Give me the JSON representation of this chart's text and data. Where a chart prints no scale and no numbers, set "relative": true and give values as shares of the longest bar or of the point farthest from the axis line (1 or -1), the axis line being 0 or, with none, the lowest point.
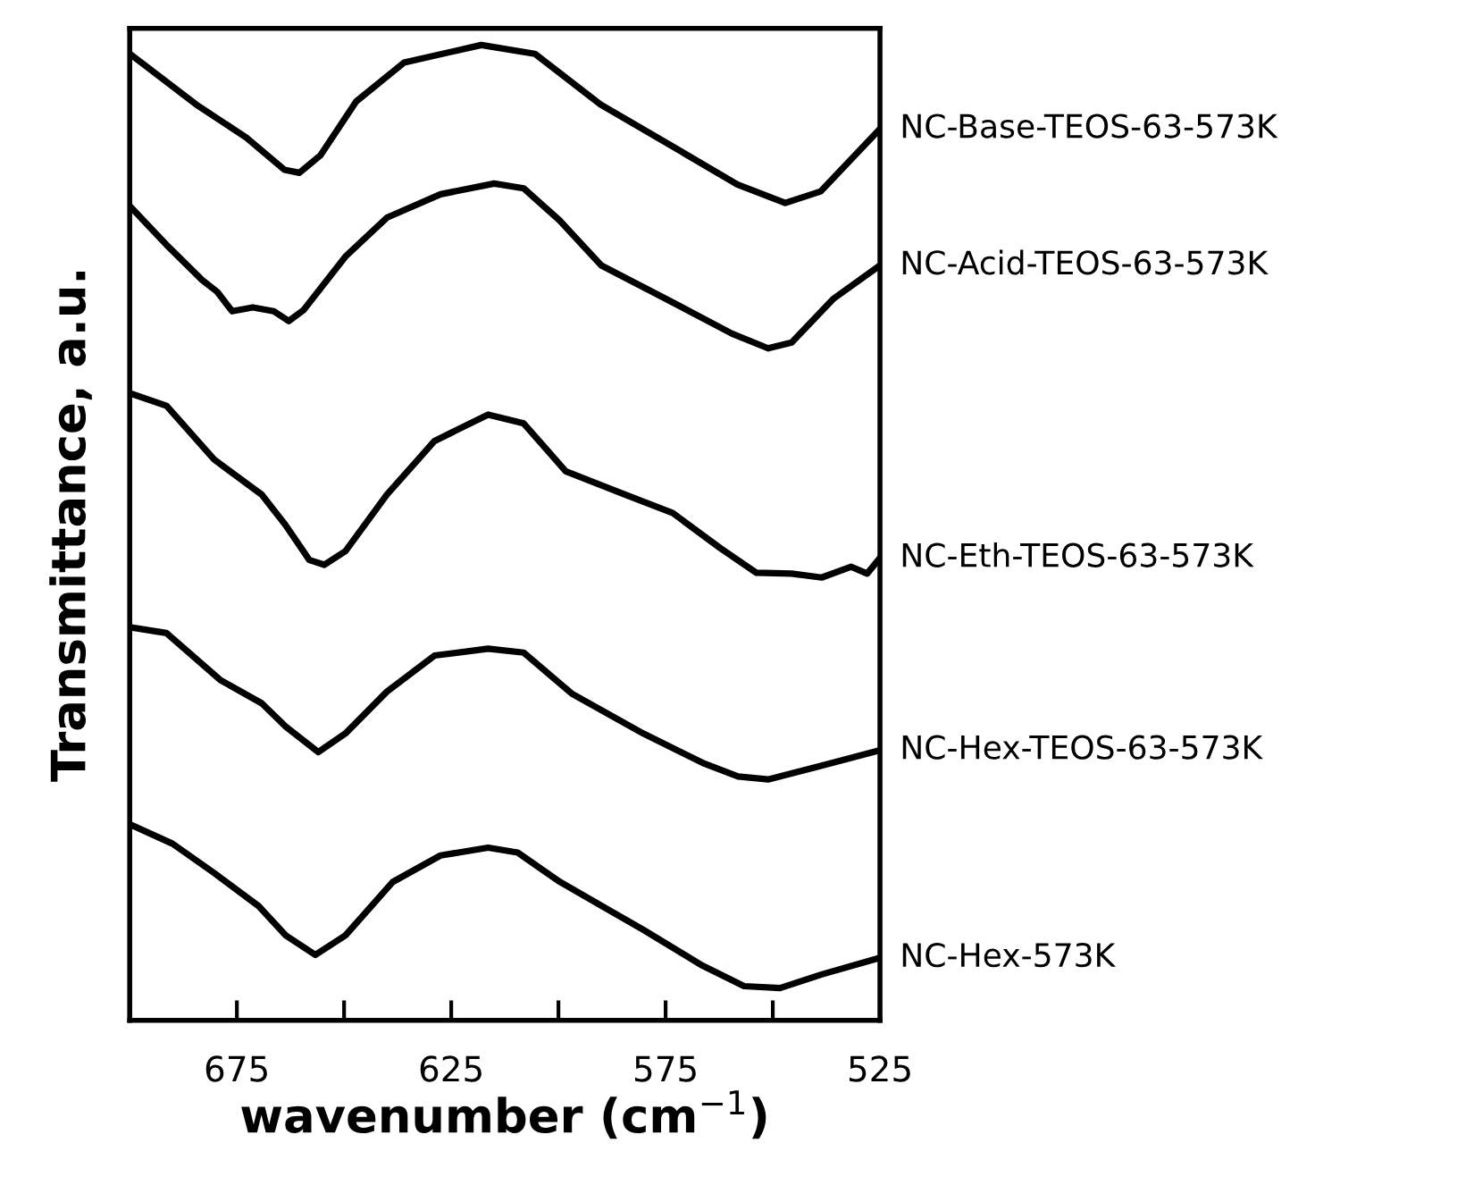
{
  "chart_data": {
    "type": "line",
    "relative": true,
    "xlabel": "wavenumber (cm$^{−1}$)",
    "ylabel": "Transmittance, a.u.",
    "xlim": [
      700,
      525
    ],
    "xticks": [
      675,
      {
        "value": 650,
        "label": null
      },
      625,
      {
        "value": 600,
        "label": null
      },
      575,
      {
        "value": 550,
        "label": null
      },
      525
    ],
    "grid": false,
    "legend": false,
    "tick_labels": "x",
    "marker": "none",
    "line_style": "solid",
    "series": [
      {
        "name": "NC-Base-TEOS-63-573K",
        "color": "#000000",
        "x": [
          700,
          684.5,
          672.8,
          663.9,
          660.4,
          655.5,
          647.2,
          636.0,
          618.0,
          605.5,
          590.2,
          572.2,
          558.3,
          547.1,
          538.8,
          525
        ],
        "values": [
          0.991,
          0.939,
          0.905,
          0.872,
          0.869,
          0.887,
          0.942,
          0.982,
          1.0,
          0.991,
          0.939,
          0.893,
          0.857,
          0.838,
          0.85,
          0.914
        ]
      },
      {
        "name": "NC-Acid-TEOS-63-573K",
        "color": "#000000",
        "x": [
          700,
          691.4,
          683.1,
          679.6,
          676.1,
          671.3,
          666.4,
          662.9,
          659.5,
          649.7,
          640.0,
          627.5,
          615.0,
          608.1,
          599.7,
          590.0,
          573.3,
          559.5,
          551.1,
          545.6,
          535.8,
          525
        ],
        "values": [
          0.835,
          0.795,
          0.759,
          0.747,
          0.727,
          0.731,
          0.727,
          0.717,
          0.728,
          0.783,
          0.823,
          0.847,
          0.858,
          0.853,
          0.82,
          0.774,
          0.736,
          0.704,
          0.689,
          0.695,
          0.74,
          0.774
        ]
      },
      {
        "name": "NC-Eth-TEOS-63-573K",
        "color": "#000000",
        "x": [
          700,
          691.4,
          680.3,
          669.2,
          663.7,
          658.1,
          654.6,
          649.7,
          640.0,
          628.9,
          616.4,
          608.1,
          598.3,
          584.5,
          573.3,
          562.2,
          553.9,
          545.6,
          538.6,
          531.7,
          528,
          525
        ],
        "values": [
          0.643,
          0.63,
          0.575,
          0.539,
          0.508,
          0.472,
          0.467,
          0.481,
          0.539,
          0.594,
          0.621,
          0.612,
          0.563,
          0.539,
          0.52,
          0.484,
          0.459,
          0.458,
          0.454,
          0.465,
          0.458,
          0.474
        ]
      },
      {
        "name": "NC-Hex-TEOS-63-573K",
        "color": "#000000",
        "x": [
          700,
          691.4,
          678.9,
          669.2,
          663.6,
          656.0,
          649.7,
          640.0,
          628.9,
          616.4,
          608.1,
          596.9,
          580.2,
          566.4,
          558.1,
          551.1,
          538.6,
          525
        ],
        "values": [
          0.403,
          0.397,
          0.349,
          0.325,
          0.301,
          0.275,
          0.294,
          0.337,
          0.374,
          0.381,
          0.377,
          0.335,
          0.294,
          0.264,
          0.25,
          0.247,
          0.261,
          0.277
        ]
      },
      {
        "name": "NC-Hex-573K",
        "color": "#000000",
        "x": [
          700,
          690,
          680.3,
          669.9,
          663.6,
          656.7,
          649.7,
          638.6,
          627.5,
          616.4,
          609.5,
          599.7,
          580.3,
          566.4,
          556.7,
          548.3,
          538.6,
          525
        ],
        "values": [
          0.201,
          0.181,
          0.151,
          0.117,
          0.087,
          0.067,
          0.087,
          0.142,
          0.169,
          0.177,
          0.172,
          0.142,
          0.093,
          0.056,
          0.035,
          0.033,
          0.047,
          0.064
        ]
      }
    ]
  }
}
